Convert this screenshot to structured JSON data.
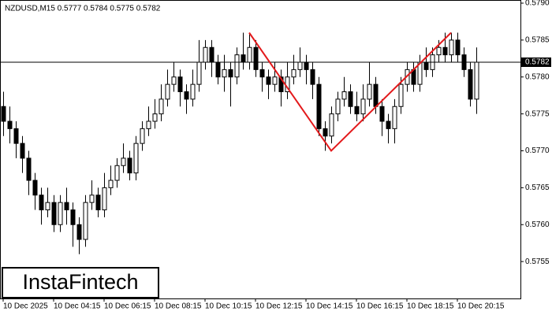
{
  "chart_data": {
    "type": "candlestick",
    "title": "NZDUSD,M15  0.5777 0.5784 0.5775 0.5782",
    "logo": "InstaFintech",
    "categories": [
      "10 Dec 2025",
      null,
      null,
      null,
      null,
      null,
      null,
      null,
      "10 Dec 04:15",
      null,
      null,
      null,
      null,
      null,
      null,
      null,
      "10 Dec 06:15",
      null,
      null,
      null,
      null,
      null,
      null,
      null,
      "10 Dec 08:15",
      null,
      null,
      null,
      null,
      null,
      null,
      null,
      "10 Dec 10:15",
      null,
      null,
      null,
      null,
      null,
      null,
      null,
      "10 Dec 12:15",
      null,
      null,
      null,
      null,
      null,
      null,
      null,
      "10 Dec 14:15",
      null,
      null,
      null,
      null,
      null,
      null,
      null,
      "10 Dec 16:15",
      null,
      null,
      null,
      null,
      null,
      null,
      null,
      "10 Dec 18:15",
      null,
      null,
      null,
      null,
      null,
      null,
      null,
      "10 Dec 20:15",
      null,
      null,
      null
    ],
    "open": [
      0.5776,
      0.5774,
      0.5773,
      0.5771,
      0.5769,
      0.5766,
      0.5764,
      0.5762,
      0.5763,
      0.576,
      0.5763,
      0.5762,
      0.576,
      0.5758,
      0.5763,
      0.5764,
      0.5762,
      0.5765,
      0.5766,
      0.5768,
      0.5769,
      0.5767,
      0.5771,
      0.5773,
      0.5774,
      0.5775,
      0.5777,
      0.5779,
      0.578,
      0.5778,
      0.5777,
      0.5779,
      0.5782,
      0.5784,
      0.5782,
      0.578,
      0.5781,
      0.578,
      0.5783,
      0.5782,
      0.5784,
      0.5781,
      0.578,
      0.5779,
      0.578,
      0.5778,
      0.578,
      0.5781,
      0.5782,
      0.5781,
      0.5779,
      0.5773,
      0.5772,
      0.5775,
      0.5777,
      0.5778,
      0.5776,
      0.5775,
      0.5777,
      0.5779,
      0.5776,
      0.5774,
      0.5773,
      0.5776,
      0.5779,
      0.5781,
      0.5779,
      0.5782,
      0.5781,
      0.5783,
      0.5784,
      0.5783,
      0.5785,
      0.5783,
      0.5781,
      0.5777
    ],
    "high": [
      0.5778,
      0.5776,
      0.5774,
      0.5772,
      0.577,
      0.5767,
      0.5765,
      0.5765,
      0.5764,
      0.5764,
      0.5765,
      0.5763,
      0.5761,
      0.5764,
      0.5766,
      0.5765,
      0.5767,
      0.5768,
      0.5769,
      0.5771,
      0.577,
      0.5772,
      0.5774,
      0.5776,
      0.5777,
      0.5779,
      0.5781,
      0.5782,
      0.5781,
      0.5779,
      0.5781,
      0.5785,
      0.5785,
      0.5785,
      0.5783,
      0.5783,
      0.5782,
      0.5784,
      0.5786,
      0.5786,
      0.5785,
      0.5782,
      0.5781,
      0.5782,
      0.5781,
      0.5782,
      0.5783,
      0.5784,
      0.5783,
      0.5782,
      0.578,
      0.5774,
      0.5776,
      0.5778,
      0.578,
      0.5779,
      0.5778,
      0.5779,
      0.5782,
      0.578,
      0.5777,
      0.5775,
      0.5777,
      0.578,
      0.5782,
      0.5782,
      0.5783,
      0.5784,
      0.5784,
      0.5785,
      0.5786,
      0.5786,
      0.5786,
      0.5784,
      0.5782,
      0.5784
    ],
    "low": [
      0.5772,
      0.5771,
      0.5769,
      0.5767,
      0.5764,
      0.5762,
      0.576,
      0.5761,
      0.5759,
      0.5759,
      0.576,
      0.5757,
      0.5756,
      0.5757,
      0.5762,
      0.5761,
      0.5761,
      0.5764,
      0.5765,
      0.5767,
      0.5766,
      0.5766,
      0.577,
      0.5772,
      0.5773,
      0.5774,
      0.5776,
      0.5778,
      0.5776,
      0.5775,
      0.5776,
      0.5778,
      0.5781,
      0.578,
      0.5779,
      0.5778,
      0.5776,
      0.5779,
      0.5781,
      0.5781,
      0.578,
      0.5778,
      0.5777,
      0.5778,
      0.5776,
      0.5777,
      0.5779,
      0.578,
      0.5779,
      0.5777,
      0.5772,
      0.577,
      0.5771,
      0.5774,
      0.5776,
      0.5775,
      0.5774,
      0.5774,
      0.5776,
      0.5775,
      0.5772,
      0.5771,
      0.5771,
      0.5775,
      0.5778,
      0.5778,
      0.5778,
      0.578,
      0.578,
      0.5782,
      0.5782,
      0.5782,
      0.5782,
      0.578,
      0.5776,
      0.5775
    ],
    "close": [
      0.5774,
      0.5773,
      0.5771,
      0.5769,
      0.5766,
      0.5764,
      0.5762,
      0.5763,
      0.576,
      0.5763,
      0.5762,
      0.576,
      0.5758,
      0.5763,
      0.5764,
      0.5762,
      0.5765,
      0.5766,
      0.5768,
      0.5769,
      0.5767,
      0.5771,
      0.5773,
      0.5774,
      0.5775,
      0.5777,
      0.5779,
      0.578,
      0.5778,
      0.5777,
      0.5779,
      0.5782,
      0.5784,
      0.5782,
      0.578,
      0.5781,
      0.578,
      0.5783,
      0.5782,
      0.5784,
      0.5781,
      0.578,
      0.5779,
      0.578,
      0.5778,
      0.578,
      0.5781,
      0.5782,
      0.5781,
      0.5779,
      0.5773,
      0.5772,
      0.5775,
      0.5777,
      0.5778,
      0.5776,
      0.5775,
      0.5777,
      0.5779,
      0.5776,
      0.5774,
      0.5773,
      0.5776,
      0.5779,
      0.5781,
      0.5779,
      0.5782,
      0.5781,
      0.5783,
      0.5784,
      0.5783,
      0.5785,
      0.5783,
      0.5781,
      0.5777,
      0.5782
    ],
    "up_color": "#ffffff",
    "down_color": "#000000",
    "ylim": [
      0.575,
      0.579
    ],
    "yticks": [
      {
        "value": 0.5755,
        "label": "0.5755"
      },
      {
        "value": 0.576,
        "label": "0.5760"
      },
      {
        "value": 0.5765,
        "label": "0.5765"
      },
      {
        "value": 0.577,
        "label": "0.5770"
      },
      {
        "value": 0.5775,
        "label": "0.5775"
      },
      {
        "value": 0.578,
        "label": "0.5780"
      },
      {
        "value": 0.5785,
        "label": "0.5785"
      },
      {
        "value": 0.579,
        "label": "0.5790"
      }
    ],
    "last_price": {
      "value": 0.5782,
      "label": "0.5782"
    },
    "pattern_lines": {
      "color": "#e31a1c",
      "x": [
        39,
        52,
        71
      ],
      "y": [
        0.5786,
        0.577,
        0.5786
      ]
    }
  }
}
